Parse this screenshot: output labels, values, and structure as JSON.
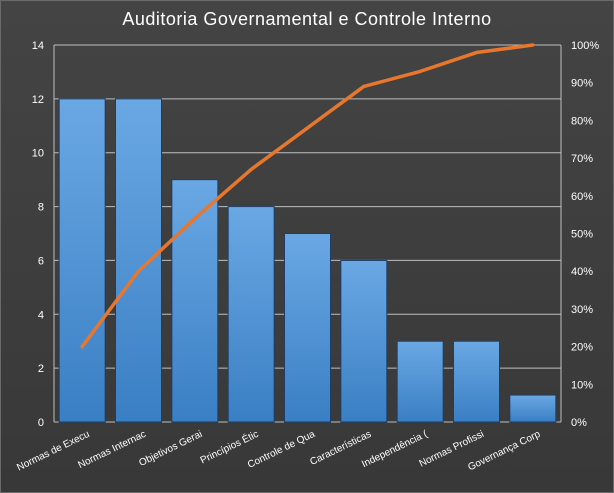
{
  "chart_data": {
    "type": "bar",
    "title": "Auditoria Governamental e Controle Interno",
    "categories": [
      "Normas de Execu",
      "Normas Internac",
      "Objetivos Gerai",
      "Princípios Étic",
      "Controle de Qua",
      "Características",
      "Independência (",
      "Normas Profissi",
      "Governança Corp"
    ],
    "series": [
      {
        "type": "bar",
        "values": [
          12,
          12,
          9,
          8,
          7,
          6,
          3,
          3,
          1
        ]
      },
      {
        "type": "line",
        "axis": "right",
        "values": [
          20,
          40,
          54,
          67,
          78,
          89,
          93,
          98,
          100
        ]
      }
    ],
    "y_left": {
      "range": [
        0,
        14
      ],
      "ticks": [
        "0",
        "2",
        "4",
        "6",
        "8",
        "10",
        "12",
        "14"
      ]
    },
    "y_right": {
      "range": [
        0,
        100
      ],
      "ticks": [
        "0%",
        "10%",
        "20%",
        "30%",
        "40%",
        "50%",
        "60%",
        "70%",
        "80%",
        "90%",
        "100%"
      ]
    },
    "grid": true,
    "legend": "none",
    "colors": {
      "bar": "#4a8fd4",
      "bar_border": "#1f3d66",
      "line": "#e8772e",
      "gridline": "#bfbfbf",
      "text": "#ffffff"
    }
  }
}
